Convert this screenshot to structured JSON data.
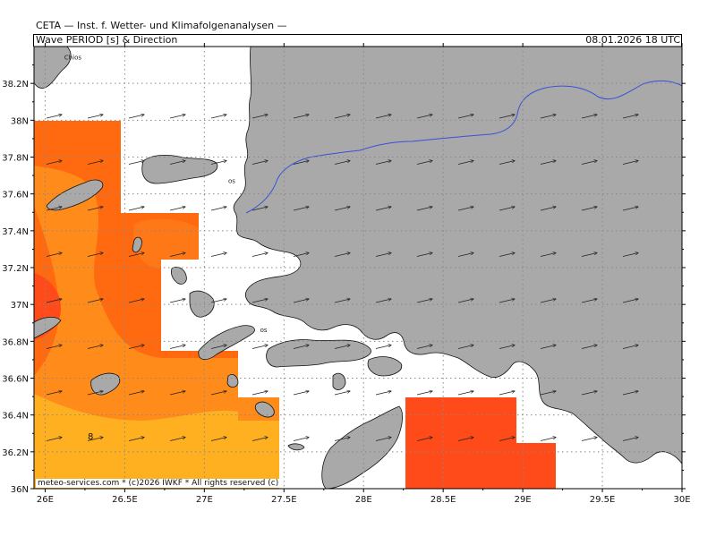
{
  "header": {
    "organization": "CETA — Inst. f. Wetter- und Klimafolgenanalysen —",
    "parameter": "Wave PERIOD [s] & Direction",
    "valid_time": "08.01.2026 18 UTC"
  },
  "footer": {
    "credit": "meteo-services.com * (c)2026 IWKF * All rights reserved (c)"
  },
  "axes": {
    "lat_labels": [
      "38.2N",
      "38N",
      "37.8N",
      "37.6N",
      "37.4N",
      "37.2N",
      "37N",
      "36.8N",
      "36.6N",
      "36.4N",
      "36.2N",
      "36N"
    ],
    "lat_values": [
      38.2,
      38.0,
      37.8,
      37.6,
      37.4,
      37.2,
      37.0,
      36.8,
      36.6,
      36.4,
      36.2,
      36.0
    ],
    "lon_labels": [
      "26E",
      "26.5E",
      "27E",
      "27.5E",
      "28E",
      "28.5E",
      "29E",
      "29.5E",
      "30E"
    ],
    "lon_values": [
      26.0,
      26.5,
      27.0,
      27.5,
      28.0,
      28.5,
      29.0,
      29.5,
      30.0
    ],
    "lon_range": [
      25.93,
      30.0
    ],
    "lat_range": [
      36.0,
      38.4
    ],
    "grid": "dotted"
  },
  "places": [
    {
      "name": "Chios",
      "lon": 26.12,
      "lat": 38.33
    },
    {
      "name": "os",
      "lon": 27.15,
      "lat": 37.66
    },
    {
      "name": "os",
      "lon": 27.35,
      "lat": 36.85
    }
  ],
  "contour_label": "8",
  "colors": {
    "land": "#a9a9a9",
    "sea": "#ffffff",
    "period_high": "#ff4a1a",
    "period_mid_high": "#ff6a10",
    "period_mid": "#ff8c1a",
    "period_low": "#ffb020",
    "border_line": "#3a4fd8"
  },
  "arrow_direction": "east-northeast"
}
